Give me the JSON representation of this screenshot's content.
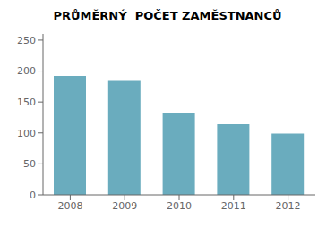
{
  "chart_data": {
    "type": "bar",
    "title": "PRŮMĚRNÝ  POČET ZAMĚSTNANCŮ",
    "categories": [
      "2008",
      "2009",
      "2010",
      "2011",
      "2012"
    ],
    "values": [
      192,
      184,
      133,
      114,
      99
    ],
    "color": "#6aacbe",
    "ylim": [
      0,
      260
    ],
    "yticks": [
      0,
      50,
      100,
      150,
      200,
      250
    ],
    "grid": false
  }
}
